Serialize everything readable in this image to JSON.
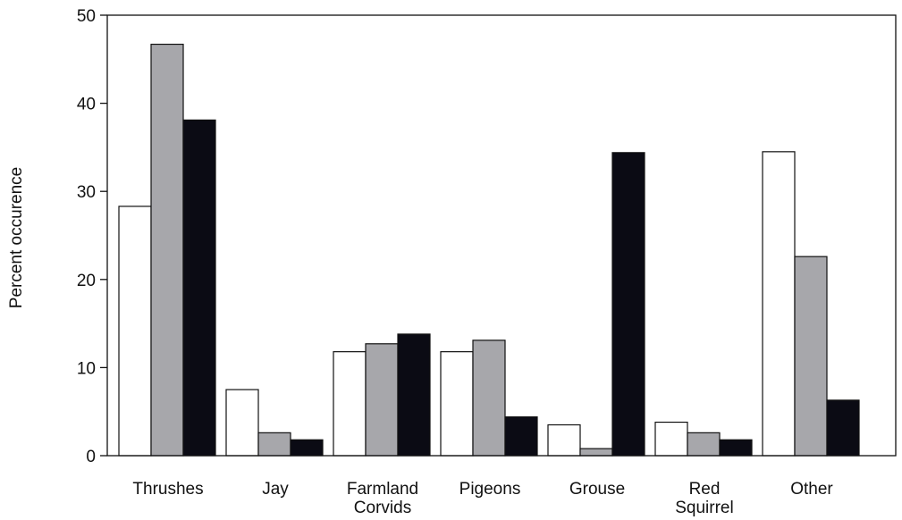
{
  "chart_data": {
    "type": "bar",
    "title": "",
    "xlabel": "",
    "ylabel": "Percent occurence",
    "ylim": [
      0,
      50
    ],
    "yticks": [
      "0",
      "10",
      "20",
      "30",
      "40",
      "50"
    ],
    "grid": false,
    "legend": "none",
    "categories": [
      [
        "Thrushes"
      ],
      [
        "Jay"
      ],
      [
        "Farmland",
        "Corvids"
      ],
      [
        "Pigeons"
      ],
      [
        "Grouse"
      ],
      [
        "Red",
        "Squirrel"
      ],
      [
        "Other"
      ]
    ],
    "series": [
      {
        "color": "#ffffff",
        "values": [
          28.3,
          7.5,
          11.8,
          11.8,
          3.5,
          3.8,
          34.5
        ]
      },
      {
        "color": "#a7a7ab",
        "values": [
          46.7,
          2.6,
          12.7,
          13.1,
          0.8,
          2.6,
          22.6
        ]
      },
      {
        "color": "#0b0b14",
        "values": [
          38.1,
          1.8,
          13.8,
          4.4,
          34.4,
          1.8,
          6.3
        ]
      }
    ]
  }
}
